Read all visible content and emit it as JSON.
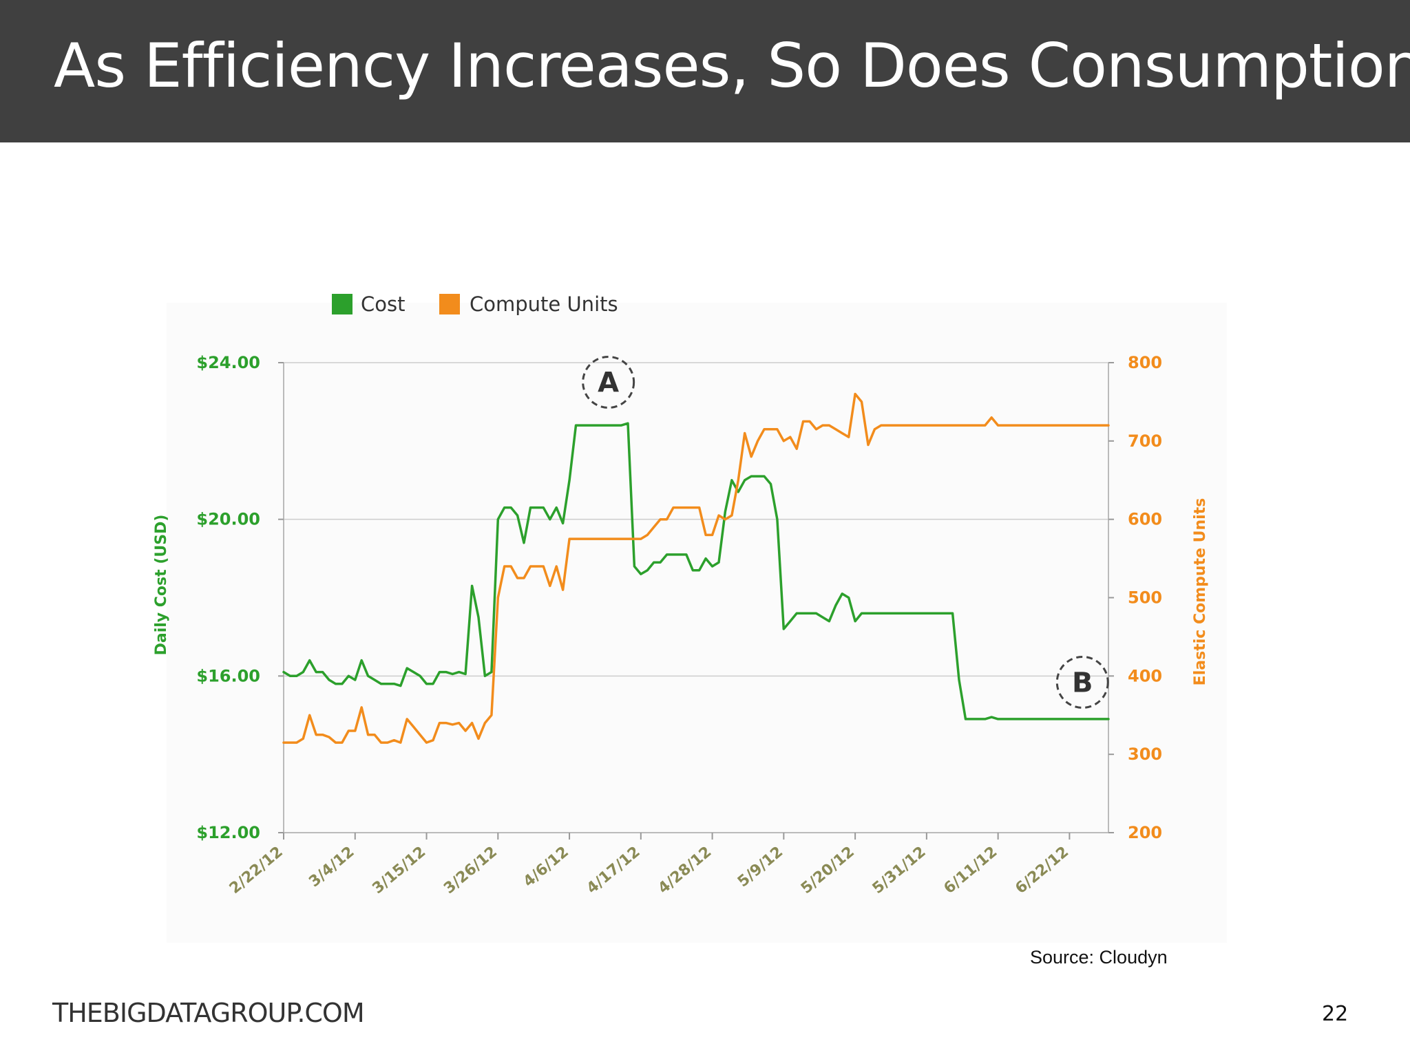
{
  "slide": {
    "title": "As Efficiency Increases, So Does Consumption",
    "source": "Source: Cloudyn",
    "footer": "THEBIGDATAGROUP.COM",
    "page_number": "22"
  },
  "colors": {
    "header_bg": "#404040",
    "cost": "#2ca02c",
    "compute": "#f28c1c",
    "grid": "#cccccc",
    "tick_x": "#8a8a55"
  },
  "chart_data": {
    "type": "line",
    "title": "",
    "xlabel": "",
    "ylabel": "Daily Cost (USD)",
    "y2label": "Elastic Compute Units",
    "legend_position": "top-left",
    "grid": true,
    "x_tick_labels": [
      "2/22/12",
      "3/4/12",
      "3/15/12",
      "3/26/12",
      "4/6/12",
      "4/17/12",
      "4/28/12",
      "5/9/12",
      "5/20/12",
      "5/31/12",
      "6/11/12",
      "6/22/12"
    ],
    "x_start": "2/22/12",
    "x_end": "6/28/12",
    "y_tick_labels": [
      "$24.00",
      "$20.00",
      "$16.00",
      "$12.00"
    ],
    "y_ticks": [
      24,
      20,
      16,
      12
    ],
    "ylim": [
      12,
      24
    ],
    "y2_tick_labels": [
      "800",
      "700",
      "600",
      "500",
      "400",
      "300",
      "200"
    ],
    "y2_ticks": [
      800,
      700,
      600,
      500,
      400,
      300,
      200
    ],
    "y2lim": [
      200,
      800
    ],
    "annotations": [
      {
        "label": "A",
        "x": "4/12/12",
        "y2": 775
      },
      {
        "label": "B",
        "x": "6/24/12",
        "y2": 392
      }
    ],
    "series": [
      {
        "name": "Cost",
        "axis": "left",
        "color": "#2ca02c",
        "x": [
          "2/22/12",
          "2/23/12",
          "2/24/12",
          "2/25/12",
          "2/26/12",
          "2/27/12",
          "2/28/12",
          "2/29/12",
          "3/1/12",
          "3/2/12",
          "3/3/12",
          "3/4/12",
          "3/5/12",
          "3/6/12",
          "3/7/12",
          "3/8/12",
          "3/9/12",
          "3/10/12",
          "3/11/12",
          "3/12/12",
          "3/13/12",
          "3/14/12",
          "3/15/12",
          "3/16/12",
          "3/17/12",
          "3/18/12",
          "3/19/12",
          "3/20/12",
          "3/21/12",
          "3/22/12",
          "3/23/12",
          "3/24/12",
          "3/25/12",
          "3/26/12",
          "3/27/12",
          "3/28/12",
          "3/29/12",
          "3/30/12",
          "3/31/12",
          "4/1/12",
          "4/2/12",
          "4/3/12",
          "4/4/12",
          "4/5/12",
          "4/6/12",
          "4/7/12",
          "4/8/12",
          "4/9/12",
          "4/10/12",
          "4/11/12",
          "4/12/12",
          "4/13/12",
          "4/14/12",
          "4/15/12",
          "4/16/12",
          "4/17/12",
          "4/18/12",
          "4/19/12",
          "4/20/12",
          "4/21/12",
          "4/22/12",
          "4/23/12",
          "4/24/12",
          "4/25/12",
          "4/26/12",
          "4/27/12",
          "4/28/12",
          "4/29/12",
          "4/30/12",
          "5/1/12",
          "5/2/12",
          "5/3/12",
          "5/4/12",
          "5/5/12",
          "5/6/12",
          "5/7/12",
          "5/8/12",
          "5/9/12",
          "5/10/12",
          "5/11/12",
          "5/12/12",
          "5/13/12",
          "5/14/12",
          "5/15/12",
          "5/16/12",
          "5/17/12",
          "5/18/12",
          "5/19/12",
          "5/20/12",
          "5/21/12",
          "5/22/12",
          "5/23/12",
          "5/24/12",
          "5/25/12",
          "5/26/12",
          "5/27/12",
          "5/28/12",
          "5/29/12",
          "5/30/12",
          "5/31/12",
          "6/1/12",
          "6/2/12",
          "6/3/12",
          "6/4/12",
          "6/5/12",
          "6/6/12",
          "6/7/12",
          "6/8/12",
          "6/9/12",
          "6/10/12",
          "6/11/12",
          "6/12/12",
          "6/28/12"
        ],
        "values": [
          16.1,
          16.0,
          16.0,
          16.1,
          16.4,
          16.1,
          16.1,
          15.9,
          15.8,
          15.8,
          16.0,
          15.9,
          16.4,
          16.0,
          15.9,
          15.8,
          15.8,
          15.8,
          15.75,
          16.2,
          16.1,
          16.0,
          15.8,
          15.8,
          16.1,
          16.1,
          16.05,
          16.1,
          16.05,
          18.3,
          17.5,
          16.0,
          16.1,
          20.0,
          20.3,
          20.3,
          20.1,
          19.4,
          20.3,
          20.3,
          20.3,
          20.0,
          20.3,
          19.9,
          21.0,
          22.4,
          22.4,
          22.4,
          22.4,
          22.4,
          22.4,
          22.4,
          22.4,
          22.45,
          18.8,
          18.6,
          18.7,
          18.9,
          18.9,
          19.1,
          19.1,
          19.1,
          19.1,
          18.7,
          18.7,
          19.0,
          18.8,
          18.9,
          20.2,
          21.0,
          20.7,
          21.0,
          21.1,
          21.1,
          21.1,
          20.9,
          20.0,
          17.2,
          17.4,
          17.6,
          17.6,
          17.6,
          17.6,
          17.5,
          17.4,
          17.8,
          18.1,
          18.0,
          17.4,
          17.6,
          17.6,
          17.6,
          17.6,
          17.6,
          17.6,
          17.6,
          17.6,
          17.6,
          17.6,
          17.6,
          17.6,
          17.6,
          17.6,
          17.6,
          15.9,
          14.9,
          14.9,
          14.9,
          14.9,
          14.95,
          14.9,
          14.9,
          14.9
        ]
      },
      {
        "name": "Compute Units",
        "axis": "right",
        "color": "#f28c1c",
        "x": [
          "2/22/12",
          "2/23/12",
          "2/24/12",
          "2/25/12",
          "2/26/12",
          "2/27/12",
          "2/28/12",
          "2/29/12",
          "3/1/12",
          "3/2/12",
          "3/3/12",
          "3/4/12",
          "3/5/12",
          "3/6/12",
          "3/7/12",
          "3/8/12",
          "3/9/12",
          "3/10/12",
          "3/11/12",
          "3/12/12",
          "3/13/12",
          "3/14/12",
          "3/15/12",
          "3/16/12",
          "3/17/12",
          "3/18/12",
          "3/19/12",
          "3/20/12",
          "3/21/12",
          "3/22/12",
          "3/23/12",
          "3/24/12",
          "3/25/12",
          "3/26/12",
          "3/27/12",
          "3/28/12",
          "3/29/12",
          "3/30/12",
          "3/31/12",
          "4/1/12",
          "4/2/12",
          "4/3/12",
          "4/4/12",
          "4/5/12",
          "4/6/12",
          "4/7/12",
          "4/8/12",
          "4/9/12",
          "4/10/12",
          "4/11/12",
          "4/12/12",
          "4/13/12",
          "4/14/12",
          "4/15/12",
          "4/16/12",
          "4/17/12",
          "4/18/12",
          "4/19/12",
          "4/20/12",
          "4/21/12",
          "4/22/12",
          "4/23/12",
          "4/24/12",
          "4/25/12",
          "4/26/12",
          "4/27/12",
          "4/28/12",
          "4/29/12",
          "4/30/12",
          "5/1/12",
          "5/2/12",
          "5/3/12",
          "5/4/12",
          "5/5/12",
          "5/6/12",
          "5/7/12",
          "5/8/12",
          "5/9/12",
          "5/10/12",
          "5/11/12",
          "5/12/12",
          "5/13/12",
          "5/14/12",
          "5/15/12",
          "5/16/12",
          "5/17/12",
          "5/18/12",
          "5/19/12",
          "5/20/12",
          "5/21/12",
          "5/22/12",
          "5/23/12",
          "5/24/12",
          "5/25/12",
          "5/26/12",
          "5/27/12",
          "5/28/12",
          "5/29/12",
          "5/30/12",
          "5/31/12",
          "6/1/12",
          "6/2/12",
          "6/3/12",
          "6/4/12",
          "6/5/12",
          "6/6/12",
          "6/7/12",
          "6/8/12",
          "6/9/12",
          "6/10/12",
          "6/11/12",
          "6/12/12",
          "6/28/12"
        ],
        "values": [
          315,
          315,
          315,
          320,
          350,
          325,
          325,
          322,
          315,
          315,
          330,
          330,
          360,
          325,
          325,
          315,
          315,
          318,
          315,
          345,
          335,
          325,
          315,
          318,
          340,
          340,
          338,
          340,
          330,
          340,
          320,
          340,
          350,
          500,
          540,
          540,
          525,
          525,
          540,
          540,
          540,
          515,
          540,
          510,
          575,
          575,
          575,
          575,
          575,
          575,
          575,
          575,
          575,
          575,
          575,
          575,
          580,
          590,
          600,
          600,
          615,
          615,
          615,
          615,
          615,
          580,
          580,
          605,
          600,
          605,
          650,
          710,
          680,
          700,
          715,
          715,
          715,
          700,
          705,
          690,
          725,
          725,
          715,
          720,
          720,
          715,
          710,
          705,
          760,
          750,
          695,
          715,
          720,
          720,
          720,
          720,
          720,
          720,
          720,
          720,
          720,
          720,
          720,
          720,
          720,
          720,
          720,
          720,
          720,
          730,
          720,
          720,
          720
        ]
      }
    ]
  }
}
